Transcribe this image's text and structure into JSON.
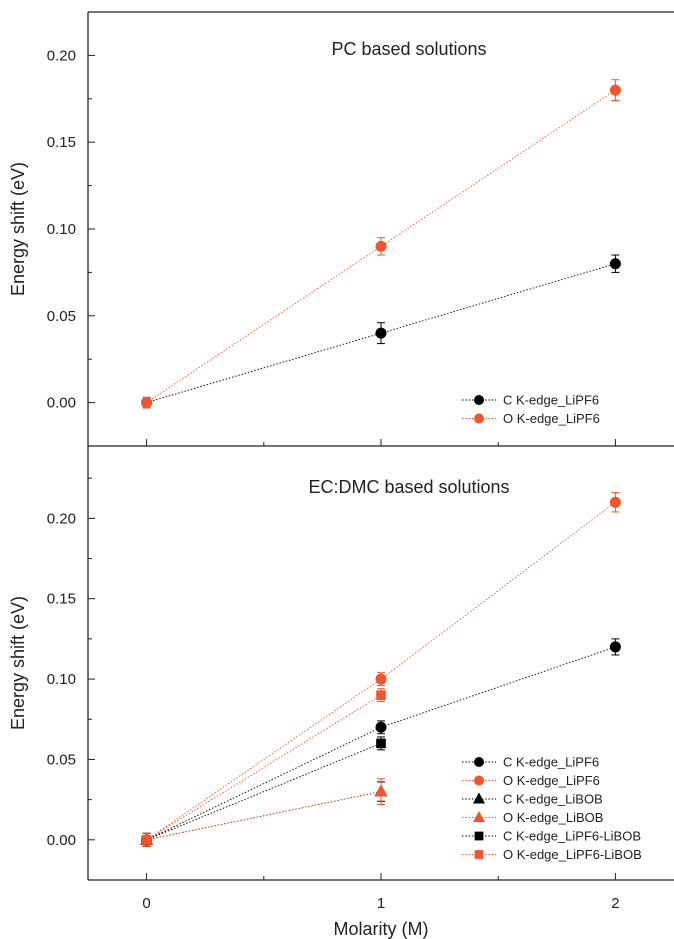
{
  "chart_data": [
    {
      "type": "scatter",
      "title": "PC based solutions",
      "xlabel": "Molarity (M)",
      "ylabel": "Energy shift (eV)",
      "xlim": [
        -0.25,
        2.25
      ],
      "ylim": [
        -0.025,
        0.225
      ],
      "x_ticks": [
        0,
        1,
        2
      ],
      "x_tick_labels": [
        "0",
        "1",
        "2"
      ],
      "y_ticks": [
        0.0,
        0.05,
        0.1,
        0.15,
        0.2
      ],
      "y_tick_labels": [
        "0.00",
        "0.05",
        "0.10",
        "0.15",
        "0.20"
      ],
      "legend_position": "bottom-right",
      "series": [
        {
          "name": "C K-edge_LiPF6",
          "color": "#000000",
          "marker": "circle",
          "x": [
            0,
            1,
            2
          ],
          "y": [
            0.0,
            0.04,
            0.08
          ],
          "err": [
            0.003,
            0.006,
            0.005
          ]
        },
        {
          "name": "O K-edge_LiPF6",
          "color": "#f0552d",
          "marker": "circle",
          "x": [
            0,
            1,
            2
          ],
          "y": [
            0.0,
            0.09,
            0.18
          ],
          "err": [
            0.003,
            0.005,
            0.006
          ]
        }
      ]
    },
    {
      "type": "scatter",
      "title": "EC:DMC based solutions",
      "xlabel": "Molarity (M)",
      "ylabel": "Energy shift (eV)",
      "xlim": [
        -0.25,
        2.25
      ],
      "ylim": [
        -0.025,
        0.245
      ],
      "x_ticks": [
        0,
        1,
        2
      ],
      "x_tick_labels": [
        "0",
        "1",
        "2"
      ],
      "y_ticks": [
        0.0,
        0.05,
        0.1,
        0.15,
        0.2
      ],
      "y_tick_labels": [
        "0.00",
        "0.05",
        "0.10",
        "0.15",
        "0.20"
      ],
      "legend_position": "bottom-right",
      "series": [
        {
          "name": "C K-edge_LiPF6",
          "color": "#000000",
          "marker": "circle",
          "x": [
            0,
            1,
            2
          ],
          "y": [
            0.0,
            0.07,
            0.12
          ],
          "err": [
            0.004,
            0.004,
            0.005
          ]
        },
        {
          "name": "O K-edge_LiPF6",
          "color": "#f0552d",
          "marker": "circle",
          "x": [
            0,
            1,
            2
          ],
          "y": [
            0.0,
            0.1,
            0.21
          ],
          "err": [
            0.004,
            0.004,
            0.006
          ]
        },
        {
          "name": "C K-edge_LiBOB",
          "color": "#000000",
          "marker": "triangle",
          "x": [
            0,
            1
          ],
          "y": [
            0.0,
            0.03
          ],
          "err": [
            0.004,
            0.006
          ]
        },
        {
          "name": "O K-edge_LiBOB",
          "color": "#f0552d",
          "marker": "triangle",
          "x": [
            0,
            1
          ],
          "y": [
            0.0,
            0.03
          ],
          "err": [
            0.004,
            0.008
          ]
        },
        {
          "name": "C K-edge_LiPF6-LiBOB",
          "color": "#000000",
          "marker": "square",
          "x": [
            0,
            1
          ],
          "y": [
            0.0,
            0.06
          ],
          "err": [
            0.004,
            0.004
          ]
        },
        {
          "name": "O K-edge_LiPF6-LiBOB",
          "color": "#f0552d",
          "marker": "square",
          "x": [
            0,
            1
          ],
          "y": [
            0.0,
            0.09
          ],
          "err": [
            0.004,
            0.004
          ]
        }
      ]
    }
  ]
}
